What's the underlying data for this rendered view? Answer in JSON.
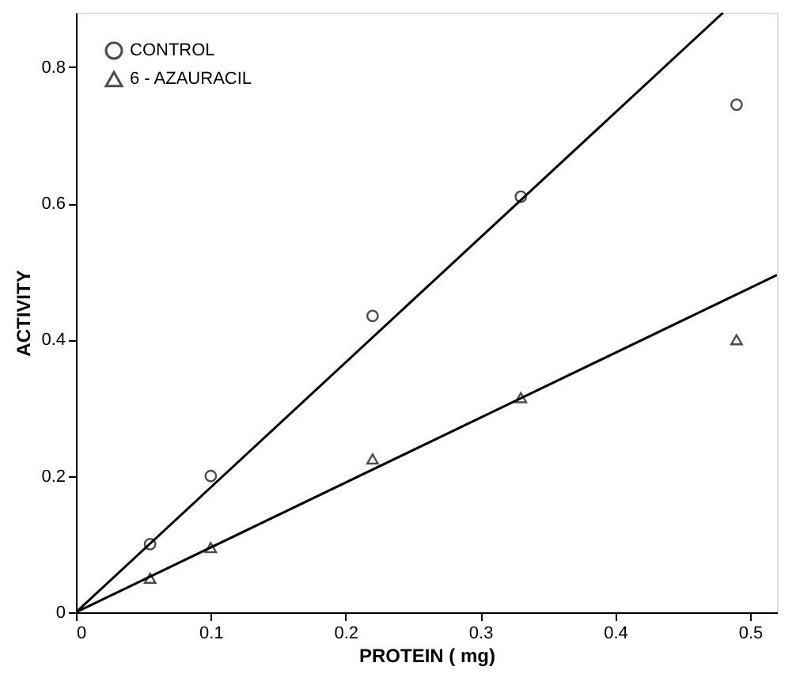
{
  "chart_data": {
    "type": "scatter",
    "xlabel": "PROTEIN ( mg)",
    "ylabel": "ACTIVITY",
    "xlim": [
      0,
      0.52
    ],
    "ylim": [
      0,
      0.88
    ],
    "xticks": [
      0,
      0.1,
      0.2,
      0.3,
      0.4,
      0.5
    ],
    "yticks": [
      0,
      0.2,
      0.4,
      0.6,
      0.8
    ],
    "grid": false,
    "legend": "top left",
    "series": [
      {
        "name": "CONTROL",
        "color": "#000000",
        "marker": "circle",
        "x": [
          0.055,
          0.1,
          0.22,
          0.33,
          0.49
        ],
        "values": [
          0.1,
          0.2,
          0.435,
          0.61,
          0.745
        ]
      },
      {
        "name": "6 - AZAURACIL",
        "color": "#000000",
        "marker": "triangle",
        "x": [
          0.055,
          0.1,
          0.22,
          0.33,
          0.49
        ],
        "values": [
          0.05,
          0.095,
          0.225,
          0.315,
          0.4
        ]
      },
      {
        "type": "line",
        "color": "#000000",
        "marker": "none",
        "line_style": "solid",
        "x": [
          0,
          0.48
        ],
        "values": [
          0,
          0.88
        ]
      },
      {
        "type": "line",
        "color": "#000000",
        "marker": "none",
        "line_style": "solid",
        "x": [
          0,
          0.52
        ],
        "values": [
          0,
          0.495
        ]
      }
    ]
  }
}
